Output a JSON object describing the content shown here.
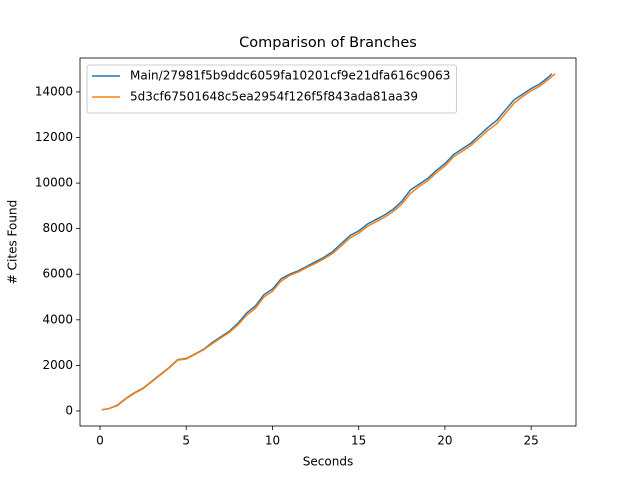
{
  "chart_data": {
    "type": "line",
    "title": "Comparison of Branches",
    "x_label": "Seconds",
    "y_label": "# Cites Found",
    "xlim": [
      -1.16,
      27.6
    ],
    "ylim": [
      -660,
      15490
    ],
    "xticks": [
      0,
      5,
      10,
      15,
      20,
      25
    ],
    "yticks": [
      0,
      2000,
      4000,
      6000,
      8000,
      10000,
      12000,
      14000
    ],
    "legend": "upper left",
    "series": [
      {
        "name": "Main/27981f5b9ddc6059fa10201cf9e21dfa616c9063",
        "color": "#1f77b4",
        "x": [
          0.1,
          0.5,
          1,
          1.5,
          2,
          2.5,
          3,
          3.5,
          4,
          4.5,
          5,
          5.5,
          6,
          6.5,
          7,
          7.5,
          8,
          8.5,
          9,
          9.5,
          10,
          10.5,
          11,
          11.5,
          12,
          12.5,
          13,
          13.5,
          14,
          14.5,
          15,
          15.5,
          16,
          16.5,
          17,
          17.5,
          18,
          18.5,
          19,
          19.5,
          20,
          20.5,
          21,
          21.5,
          22,
          22.5,
          23,
          23.5,
          24,
          24.5,
          25,
          25.5,
          26,
          26.2
        ],
        "values": [
          50,
          100,
          250,
          550,
          800,
          1000,
          1300,
          1600,
          1900,
          2250,
          2300,
          2500,
          2700,
          3000,
          3250,
          3500,
          3850,
          4300,
          4600,
          5100,
          5350,
          5800,
          6000,
          6150,
          6350,
          6550,
          6750,
          7000,
          7350,
          7700,
          7900,
          8200,
          8400,
          8600,
          8850,
          9200,
          9700,
          9950,
          10200,
          10550,
          10850,
          11250,
          11500,
          11750,
          12100,
          12450,
          12750,
          13200,
          13650,
          13900,
          14150,
          14350,
          14650,
          14800
        ]
      },
      {
        "name": "5d3cf67501648c5ea2954f126f5f843ada81aa39",
        "color": "#ff7f0e",
        "x": [
          0.1,
          0.5,
          1,
          1.5,
          2,
          2.5,
          3,
          3.5,
          4,
          4.5,
          5,
          5.5,
          6,
          6.5,
          7,
          7.5,
          8,
          8.5,
          9,
          9.5,
          10,
          10.5,
          11,
          11.5,
          12,
          12.5,
          13,
          13.5,
          14,
          14.5,
          15,
          15.5,
          16,
          16.5,
          17,
          17.5,
          18,
          18.5,
          19,
          19.5,
          20,
          20.5,
          21,
          21.5,
          22,
          22.5,
          23,
          23.5,
          24,
          24.5,
          25,
          25.5,
          26,
          26.4
        ],
        "values": [
          50,
          100,
          230,
          530,
          780,
          980,
          1280,
          1580,
          1880,
          2230,
          2280,
          2480,
          2680,
          2950,
          3200,
          3450,
          3780,
          4200,
          4500,
          5000,
          5250,
          5700,
          5950,
          6100,
          6300,
          6480,
          6680,
          6920,
          7250,
          7600,
          7800,
          8100,
          8300,
          8500,
          8750,
          9080,
          9550,
          9850,
          10100,
          10450,
          10750,
          11150,
          11400,
          11650,
          11980,
          12320,
          12600,
          13050,
          13500,
          13800,
          14050,
          14250,
          14550,
          14800
        ]
      }
    ]
  }
}
